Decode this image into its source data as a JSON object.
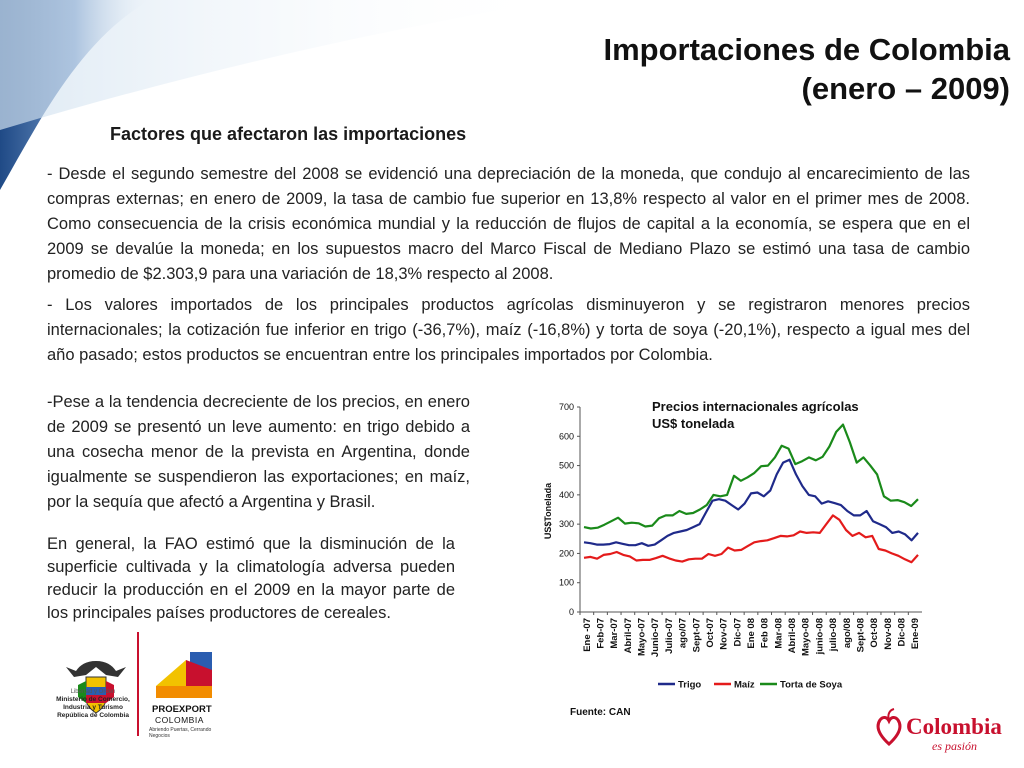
{
  "slide": {
    "title_line1": "Importaciones de Colombia",
    "title_line2": "(enero – 2009)",
    "subtitle": "Factores que afectaron las importaciones",
    "paragraphs": [
      "- Desde el segundo semestre del 2008 se evidenció una depreciación de la moneda, que condujo al encarecimiento de las compras externas; en enero de 2009, la tasa de cambio fue superior en 13,8% respecto al valor en el primer mes de 2008. Como consecuencia de la crisis económica mundial y la reducción de flujos de capital a la economía, se espera que en el 2009 se devalúe la moneda; en los supuestos macro del Marco Fiscal de Mediano Plazo se estimó una tasa de cambio promedio de $2.303,9 para una variación de 18,3% respecto al 2008.",
      "- Los valores importados de los principales productos agrícolas disminuyeron y se registraron menores precios internacionales; la cotización fue inferior en trigo (-36,7%), maíz (-16,8%) y torta de soya (-20,1%), respecto a igual mes del año pasado; estos productos se encuentran entre los principales importados por Colombia.",
      "-Pese a la tendencia decreciente de los precios, en enero de 2009 se presentó un leve aumento: en trigo debido a una cosecha menor de la prevista en Argentina, donde igualmente se suspendieron las exportaciones; en maíz, por la sequía que afectó a Argentina y Brasil.",
      "En general, la FAO estimó que la disminución de la superficie cultivada y la climatología adversa pueden reducir la producción en el 2009 en la mayor parte de los principales países productores de cereales."
    ]
  },
  "chart_data": {
    "type": "line",
    "title_line1": "Precios internacionales agrícolas",
    "title_line2": "US$ tonelada",
    "ylabel": "US$Tonelada",
    "ylim": [
      0,
      700
    ],
    "yticks": [
      0,
      100,
      200,
      300,
      400,
      500,
      600,
      700
    ],
    "x_labels": [
      "Ene -07",
      "Feb-07",
      "Mar-07",
      "Abril-07",
      "Mayo-07",
      "Junio-07",
      "Julio-07",
      "ago/07",
      "Sept-07",
      "Oct-07",
      "Nov-07",
      "Dic-07",
      "Ene 08",
      "Feb 08",
      "Mar-08",
      "Abril-08",
      "Mayo-08",
      "junio-08",
      "julio-08",
      "ago/08",
      "Sept-08",
      "Oct-08",
      "Nov-08",
      "Dic-08",
      "Ene-09"
    ],
    "legend_position": "bottom",
    "source": "Fuente: CAN",
    "series": [
      {
        "name": "Trigo",
        "color": "#1f2a8a",
        "values": [
          238,
          235,
          230,
          230,
          232,
          238,
          233,
          228,
          228,
          235,
          226,
          230,
          245,
          260,
          270,
          275,
          280,
          290,
          300,
          340,
          380,
          385,
          380,
          365,
          350,
          370,
          405,
          408,
          395,
          415,
          470,
          510,
          520,
          470,
          430,
          400,
          395,
          370,
          378,
          372,
          365,
          345,
          330,
          330,
          345,
          310,
          300,
          290,
          270,
          275,
          265,
          245,
          270
        ]
      },
      {
        "name": "Maíz",
        "color": "#e41b1b",
        "values": [
          185,
          188,
          182,
          195,
          198,
          205,
          195,
          190,
          176,
          178,
          178,
          184,
          192,
          183,
          176,
          172,
          180,
          182,
          182,
          198,
          192,
          198,
          220,
          210,
          212,
          225,
          238,
          242,
          245,
          252,
          260,
          258,
          262,
          275,
          270,
          272,
          270,
          300,
          330,
          315,
          280,
          260,
          270,
          255,
          260,
          215,
          210,
          200,
          192,
          180,
          170,
          195
        ]
      },
      {
        "name": "Torta de Soya",
        "color": "#1a8a1a",
        "values": [
          290,
          285,
          288,
          298,
          310,
          322,
          302,
          305,
          303,
          292,
          295,
          320,
          330,
          330,
          345,
          335,
          338,
          350,
          365,
          400,
          395,
          400,
          465,
          448,
          460,
          475,
          498,
          500,
          528,
          568,
          558,
          505,
          515,
          528,
          518,
          530,
          565,
          615,
          640,
          580,
          510,
          528,
          500,
          470,
          395,
          380,
          382,
          375,
          362,
          385
        ]
      }
    ]
  },
  "footer": {
    "ministry_motto": "Libertad y Orden",
    "ministry_name": "Ministerio de Comercio, Industria y Turismo República de Colombia",
    "proexport_name": "PROEXPORT",
    "proexport_sub": "COLOMBIA",
    "proexport_tagline": "Abriendo Puertas, Cerrando Negocios",
    "brand_word": "Colombia",
    "brand_slogan": "es pasión"
  }
}
